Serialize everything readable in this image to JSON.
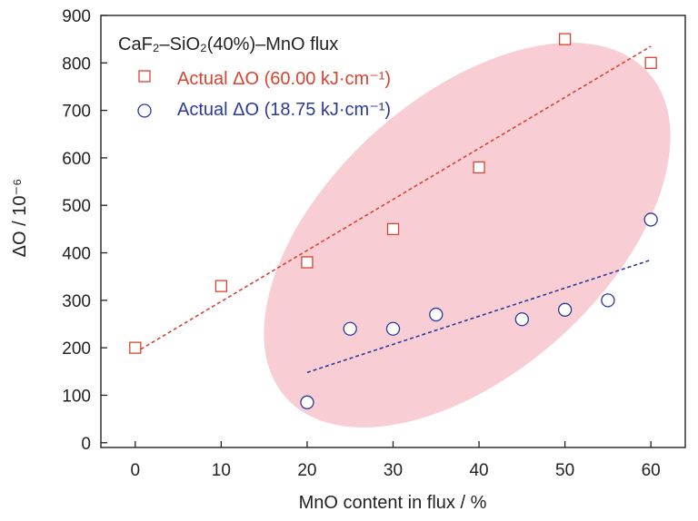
{
  "chart_data": {
    "type": "scatter",
    "title": "",
    "annotation_text": "CaF₂–SiO₂(40%)–MnO flux",
    "xlabel": "MnO content in flux / %",
    "ylabel": "ΔO / 10⁻⁶",
    "xlim": [
      -4,
      64
    ],
    "ylim": [
      -10,
      900
    ],
    "xticks": [
      0,
      10,
      20,
      30,
      40,
      50,
      60
    ],
    "yticks": [
      0,
      100,
      200,
      300,
      400,
      500,
      600,
      700,
      800,
      900
    ],
    "grid": false,
    "legend_position": "top-left",
    "series": [
      {
        "name": "Actual ΔO (60.00 kJ·cm⁻¹)",
        "marker": "square",
        "color": "#d9432f",
        "x": [
          0,
          10,
          20,
          30,
          40,
          50,
          60
        ],
        "y": [
          200,
          330,
          380,
          450,
          580,
          850,
          800
        ],
        "trend": {
          "x": [
            0,
            60
          ],
          "y": [
            190,
            835
          ]
        }
      },
      {
        "name": "Actual ΔO (18.75 kJ·cm⁻¹)",
        "marker": "circle",
        "color": "#2b3a9a",
        "x": [
          20,
          25,
          30,
          35,
          45,
          50,
          55,
          60
        ],
        "y": [
          85,
          240,
          240,
          270,
          260,
          280,
          300,
          470
        ],
        "trend": {
          "x": [
            20,
            60
          ],
          "y": [
            148,
            385
          ]
        }
      }
    ],
    "highlight_color": "#f7c9cf"
  }
}
